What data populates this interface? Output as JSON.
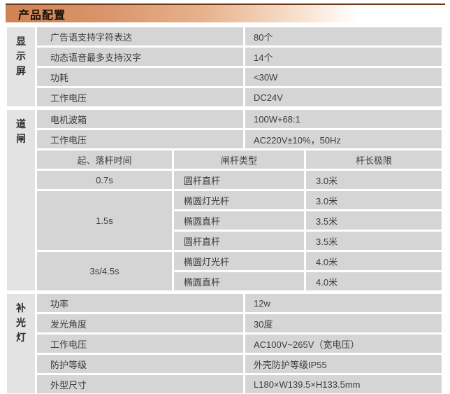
{
  "header": {
    "title": "产品配置"
  },
  "colors": {
    "banner_gradient_start": "#cf8355",
    "banner_top_line": "#6e3717",
    "cell_bg": "#d5d5d5",
    "category_bg": "#e3e3e3"
  },
  "sections": [
    {
      "category": "显示屏",
      "rows": [
        {
          "label": "广告语支持字符表达",
          "value": "80个"
        },
        {
          "label": "动态语音最多支持汉字",
          "value": "14个"
        },
        {
          "label": "功耗",
          "value": "<30W"
        },
        {
          "label": "工作电压",
          "value": "DC24V"
        }
      ]
    },
    {
      "category": "道闸",
      "rows": [
        {
          "label": "电机波箱",
          "value": "100W+68:1"
        },
        {
          "label": "工作电压",
          "value": "AC220V±10%，50Hz"
        }
      ],
      "sub_table": {
        "headers": [
          "起、落杆时间",
          "闸杆类型",
          "杆长极限"
        ],
        "groups": [
          {
            "time": "0.7s",
            "items": [
              {
                "type": "圆杆直杆",
                "length": "3.0米"
              }
            ]
          },
          {
            "time": "1.5s",
            "items": [
              {
                "type": "椭圆灯光杆",
                "length": "3.0米"
              },
              {
                "type": "椭圆直杆",
                "length": "3.5米"
              },
              {
                "type": "圆杆直杆",
                "length": "3.5米"
              }
            ]
          },
          {
            "time": "3s/4.5s",
            "items": [
              {
                "type": "椭圆灯光杆",
                "length": "4.0米"
              },
              {
                "type": "椭圆直杆",
                "length": "4.0米"
              }
            ]
          }
        ]
      }
    },
    {
      "category": "补光灯",
      "rows": [
        {
          "label": "功率",
          "value": "12w"
        },
        {
          "label": "发光角度",
          "value": "30度"
        },
        {
          "label": "工作电压",
          "value": "AC100V~265V（宽电压）"
        },
        {
          "label": "防护等级",
          "value": "外壳防护等级IP55"
        },
        {
          "label": "外型尺寸",
          "value": "L180×W139.5×H133.5mm"
        }
      ]
    }
  ]
}
